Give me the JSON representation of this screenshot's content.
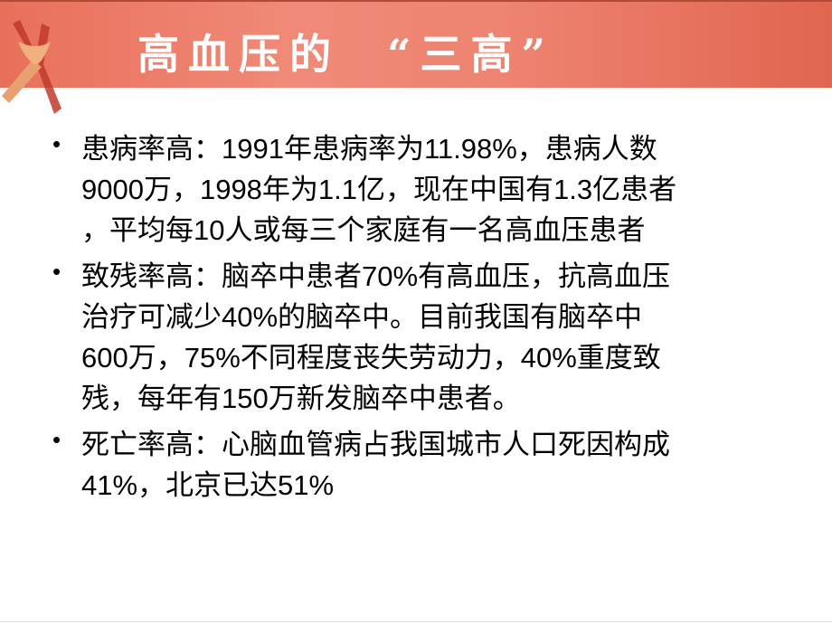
{
  "slide": {
    "title": "高血压的  “三高”",
    "accent_color": "#ee8472",
    "bullets": [
      {
        "lines": [
          "患病率高：1991年患病率为11.98%，患病人数",
          "9000万，1998年为1.1亿，现在中国有1.3亿患者",
          "，平均每10人或每三个家庭有一名高血压患者"
        ]
      },
      {
        "lines": [
          "致残率高：脑卒中患者70%有高血压，抗高血压",
          "治疗可减少40%的脑卒中。目前我国有脑卒中",
          "600万，75%不同程度丧失劳动力，40%重度致",
          "残，每年有150万新发脑卒中患者。"
        ]
      },
      {
        "lines": [
          "死亡率高：心脑血管病占我国城市人口死因构成",
          "41%，北京已达51%"
        ]
      }
    ],
    "bullet_glyph": "•"
  }
}
